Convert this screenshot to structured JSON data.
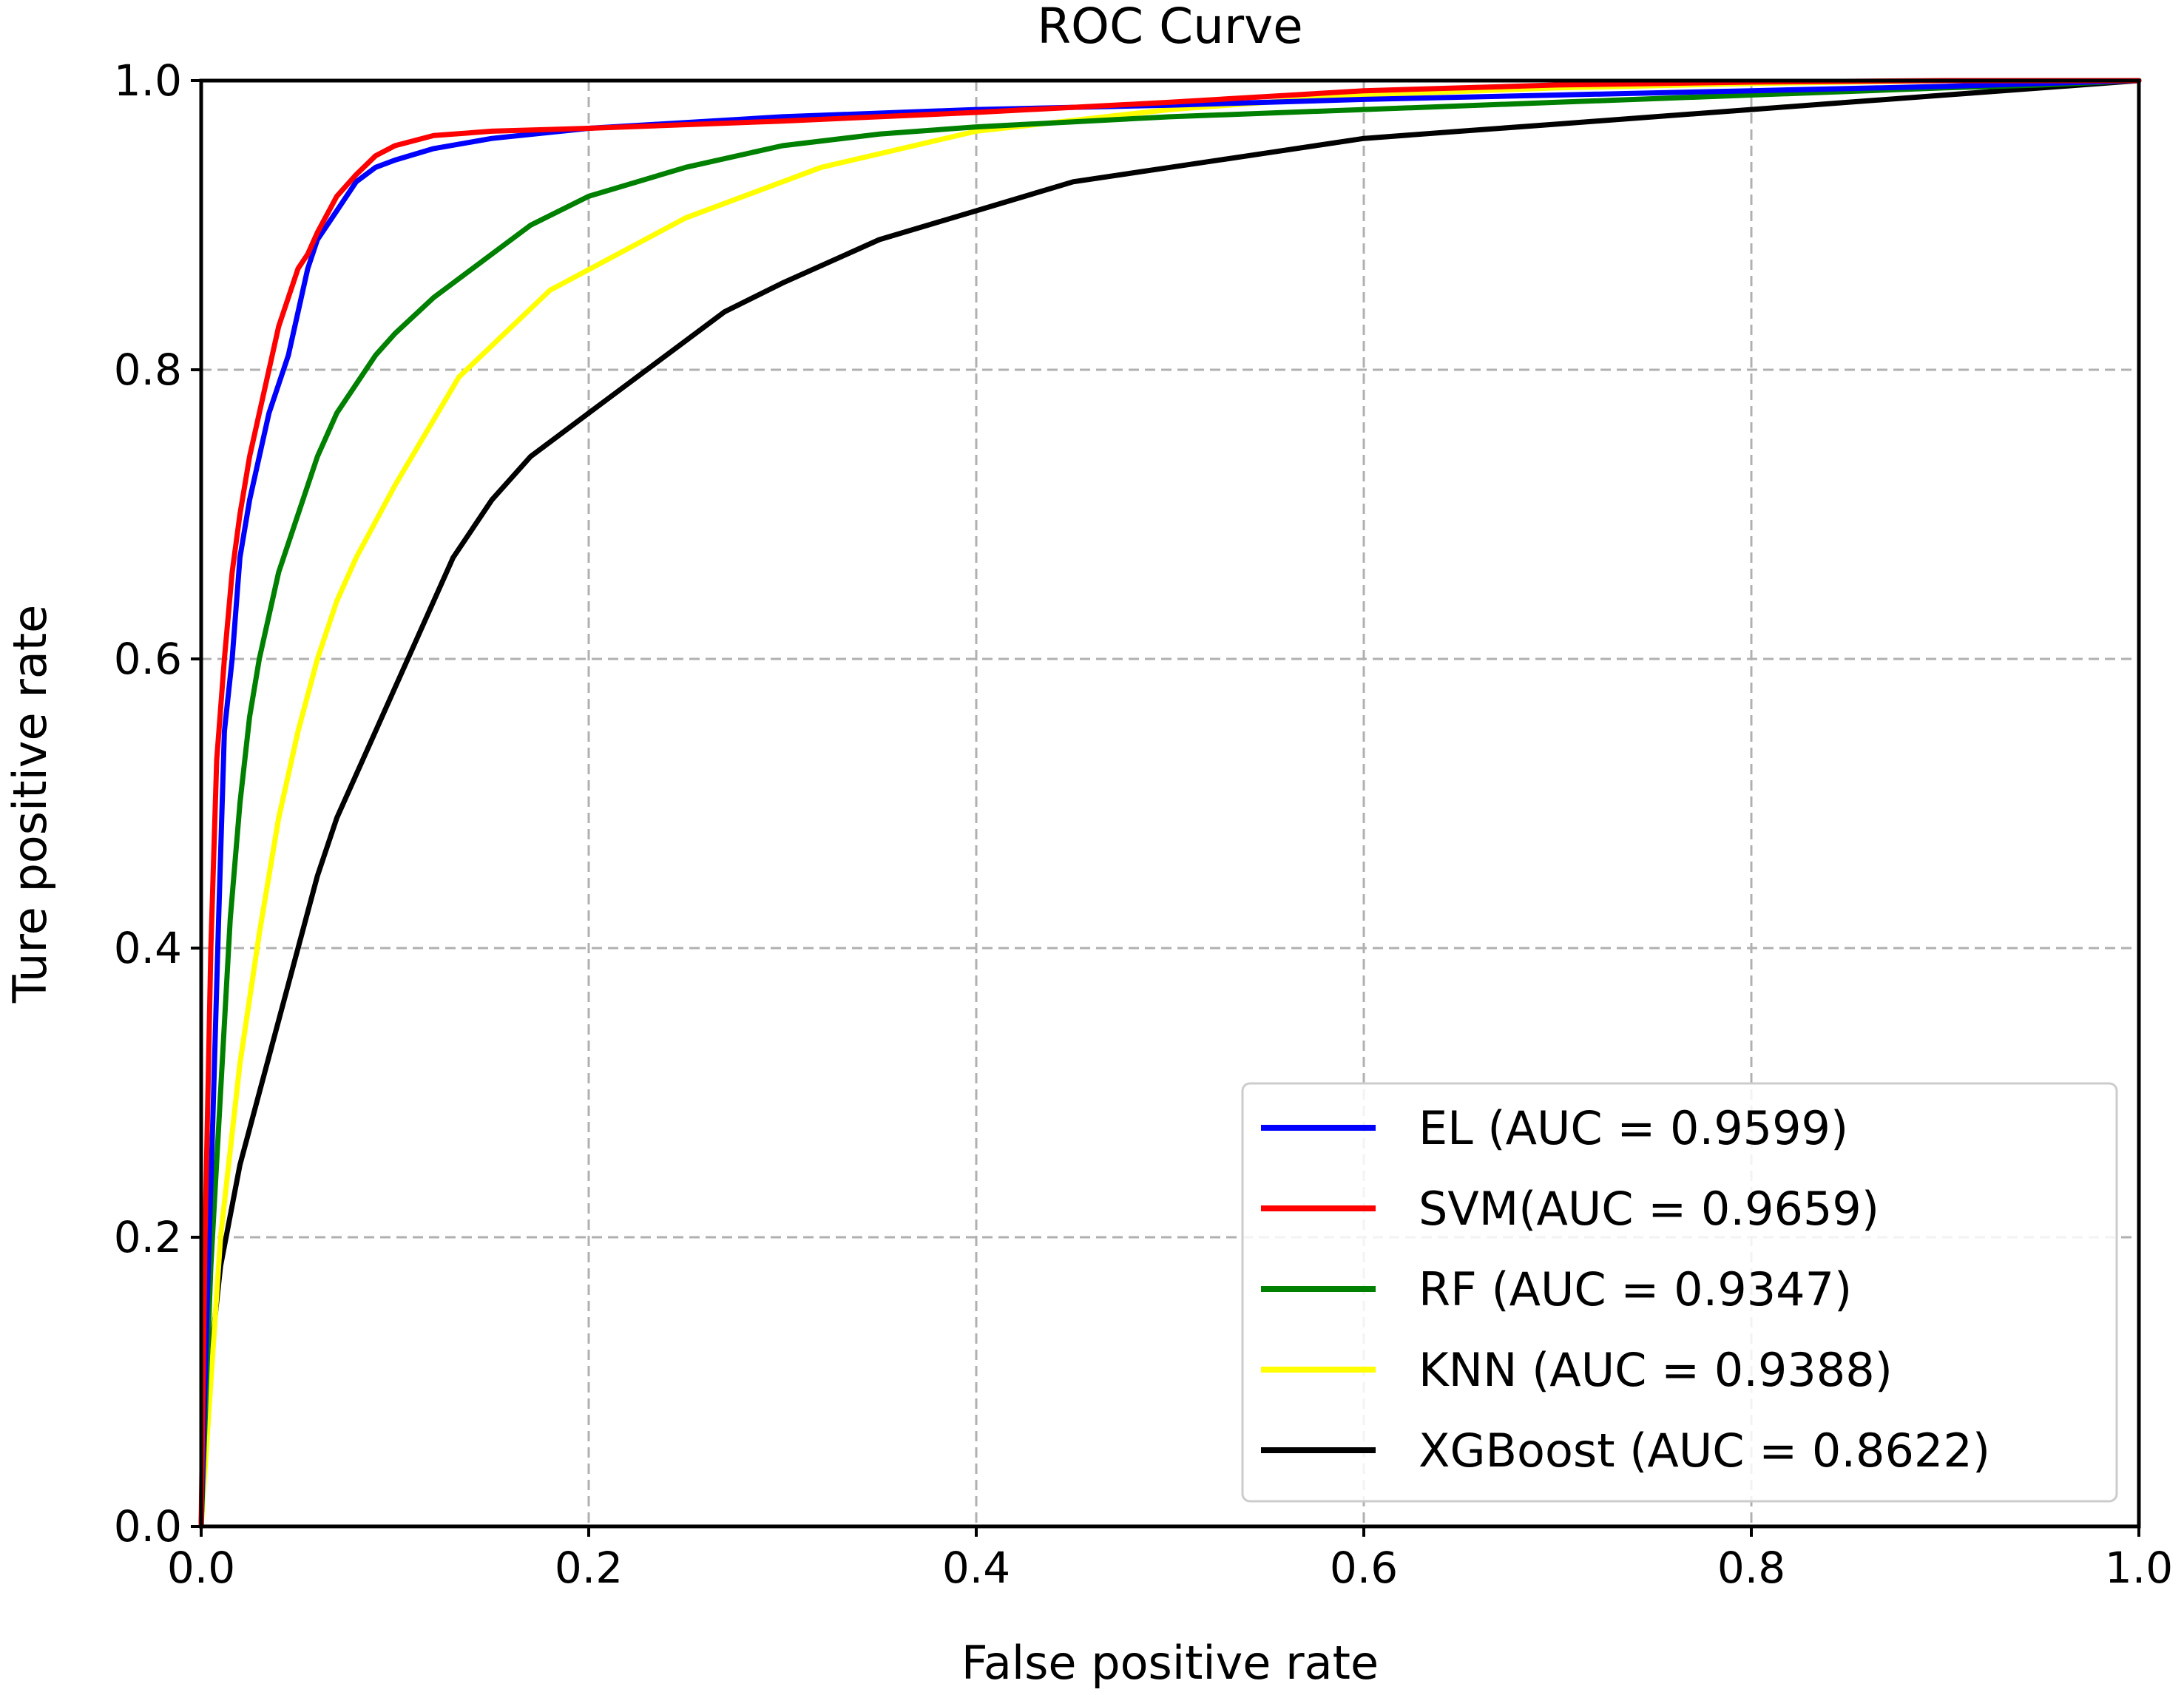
{
  "chart_data": {
    "type": "line",
    "title": "ROC Curve",
    "xlabel": "False positive rate",
    "ylabel": "Ture positive rate",
    "xlim": [
      0.0,
      1.0
    ],
    "ylim": [
      0.0,
      1.0
    ],
    "xticks": [
      "0.0",
      "0.2",
      "0.4",
      "0.6",
      "0.8",
      "1.0"
    ],
    "yticks": [
      "0.0",
      "0.2",
      "0.4",
      "0.6",
      "0.8",
      "1.0"
    ],
    "grid": true,
    "legend_position": "bottom-right",
    "series": [
      {
        "name": "EL (AUC = 0.9599)",
        "color": "#0000ff",
        "x": [
          0,
          0.003,
          0.006,
          0.009,
          0.012,
          0.016,
          0.02,
          0.025,
          0.03,
          0.035,
          0.04,
          0.045,
          0.05,
          0.055,
          0.06,
          0.07,
          0.08,
          0.09,
          0.1,
          0.12,
          0.15,
          0.2,
          0.3,
          0.4,
          0.5,
          0.6,
          0.7,
          0.8,
          0.9,
          0.95,
          1.0
        ],
        "y": [
          0,
          0.15,
          0.28,
          0.42,
          0.55,
          0.6,
          0.67,
          0.71,
          0.74,
          0.77,
          0.79,
          0.81,
          0.84,
          0.87,
          0.89,
          0.91,
          0.93,
          0.94,
          0.945,
          0.953,
          0.96,
          0.967,
          0.975,
          0.98,
          0.983,
          0.987,
          0.99,
          0.993,
          0.996,
          0.998,
          1.0
        ]
      },
      {
        "name": "SVM(AUC = 0.9659)",
        "color": "#ff0000",
        "x": [
          0,
          0.002,
          0.005,
          0.008,
          0.012,
          0.016,
          0.02,
          0.025,
          0.03,
          0.035,
          0.04,
          0.045,
          0.05,
          0.055,
          0.06,
          0.07,
          0.08,
          0.09,
          0.1,
          0.12,
          0.15,
          0.2,
          0.3,
          0.4,
          0.5,
          0.6,
          0.7,
          0.8,
          0.9,
          0.95,
          1.0
        ],
        "y": [
          0,
          0.2,
          0.4,
          0.53,
          0.6,
          0.66,
          0.7,
          0.74,
          0.77,
          0.8,
          0.83,
          0.85,
          0.87,
          0.88,
          0.895,
          0.92,
          0.935,
          0.948,
          0.955,
          0.962,
          0.965,
          0.967,
          0.972,
          0.978,
          0.985,
          0.993,
          0.997,
          0.999,
          1.0,
          1.0,
          1.0
        ]
      },
      {
        "name": "RF (AUC = 0.9347)",
        "color": "#008000",
        "x": [
          0,
          0.005,
          0.01,
          0.015,
          0.02,
          0.025,
          0.03,
          0.035,
          0.04,
          0.05,
          0.06,
          0.07,
          0.08,
          0.09,
          0.1,
          0.12,
          0.14,
          0.17,
          0.2,
          0.25,
          0.3,
          0.35,
          0.4,
          0.5,
          0.6,
          0.7,
          0.8,
          0.9,
          0.95,
          1.0
        ],
        "y": [
          0,
          0.18,
          0.3,
          0.42,
          0.5,
          0.56,
          0.6,
          0.63,
          0.66,
          0.7,
          0.74,
          0.77,
          0.79,
          0.81,
          0.825,
          0.85,
          0.87,
          0.9,
          0.92,
          0.94,
          0.955,
          0.963,
          0.968,
          0.975,
          0.98,
          0.985,
          0.99,
          0.995,
          0.997,
          1.0
        ]
      },
      {
        "name": "KNN (AUC = 0.9388)",
        "color": "#ffff00",
        "x": [
          0,
          0.01,
          0.02,
          0.03,
          0.04,
          0.05,
          0.06,
          0.07,
          0.08,
          0.1,
          0.133,
          0.18,
          0.25,
          0.32,
          0.4,
          0.5,
          0.6,
          0.7,
          0.8,
          0.9,
          1.0
        ],
        "y": [
          0,
          0.2,
          0.32,
          0.41,
          0.49,
          0.55,
          0.6,
          0.64,
          0.67,
          0.72,
          0.795,
          0.855,
          0.905,
          0.94,
          0.965,
          0.98,
          0.99,
          0.995,
          0.998,
          1.0,
          1.0
        ]
      },
      {
        "name": "XGBoost (AUC = 0.8622)",
        "color": "#000000",
        "x": [
          0,
          0.003,
          0.006,
          0.01,
          0.02,
          0.03,
          0.04,
          0.05,
          0.06,
          0.07,
          0.08,
          0.09,
          0.1,
          0.11,
          0.12,
          0.13,
          0.15,
          0.17,
          0.2,
          0.22,
          0.25,
          0.27,
          0.3,
          0.35,
          0.4,
          0.45,
          0.5,
          0.55,
          0.6,
          0.65,
          0.7,
          0.75,
          0.8,
          0.85,
          0.9,
          0.95,
          1.0
        ],
        "y": [
          0,
          0.08,
          0.13,
          0.18,
          0.25,
          0.3,
          0.35,
          0.4,
          0.45,
          0.49,
          0.52,
          0.55,
          0.58,
          0.61,
          0.64,
          0.67,
          0.71,
          0.74,
          0.77,
          0.79,
          0.82,
          0.84,
          0.86,
          0.89,
          0.91,
          0.93,
          0.94,
          0.95,
          0.96,
          0.965,
          0.97,
          0.975,
          0.98,
          0.985,
          0.99,
          0.995,
          1.0
        ]
      }
    ]
  }
}
